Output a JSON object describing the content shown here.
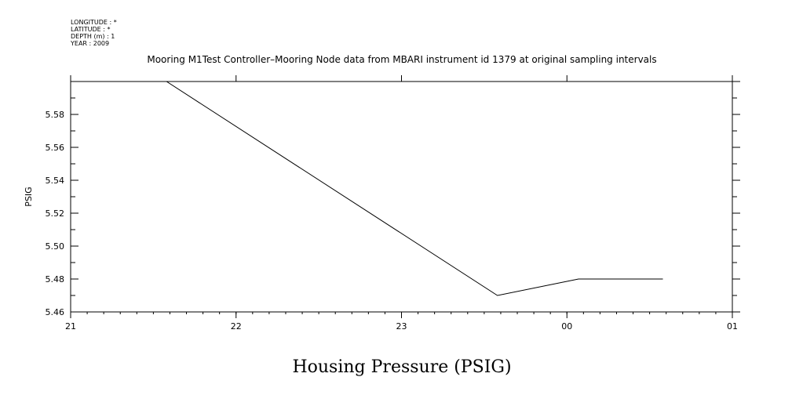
{
  "header": {
    "meta_lines": [
      "LONGITUDE : *",
      "LATITUDE : *",
      "DEPTH (m) : 1",
      "YEAR : 2009"
    ]
  },
  "chart_data": {
    "type": "line",
    "title": "Mooring M1Test Controller–Mooring Node data from MBARI instrument id 1379 at original sampling intervals",
    "xlabel": "",
    "ylabel": "PSIG",
    "bottom_title": "Housing Pressure (PSIG)",
    "x_tick_labels": [
      "21",
      "22",
      "23",
      "00",
      "01"
    ],
    "x_tick_hours": [
      21,
      22,
      23,
      24,
      25
    ],
    "xlim_hours": [
      21,
      25
    ],
    "y_tick_labels": [
      "5.46",
      "5.48",
      "5.50",
      "5.52",
      "5.54",
      "5.56",
      "5.58"
    ],
    "y_tick_values": [
      5.46,
      5.48,
      5.5,
      5.52,
      5.54,
      5.56,
      5.58
    ],
    "ylim": [
      5.46,
      5.6
    ],
    "series": [
      {
        "x_hours": [
          21.58,
          23.58,
          24.07,
          24.58
        ],
        "values": [
          5.6,
          5.47,
          5.48,
          5.48
        ]
      }
    ]
  }
}
